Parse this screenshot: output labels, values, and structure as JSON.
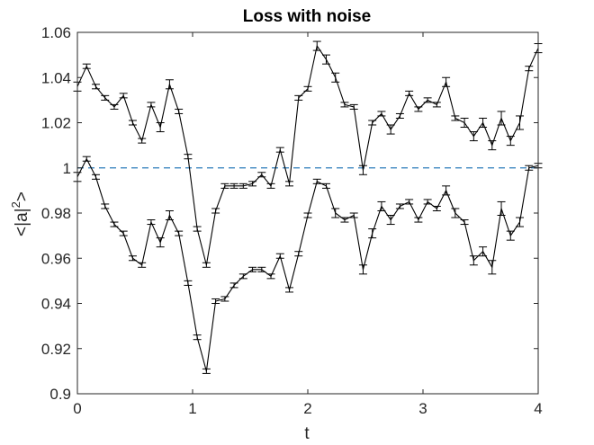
{
  "chart_data": {
    "type": "line",
    "title": "Loss with noise",
    "xlabel": "t",
    "ylabel": "<|a|",
    "ylabel_superscript": "2",
    "ylabel_suffix": ">",
    "xlim": [
      0,
      4
    ],
    "ylim": [
      0.9,
      1.06
    ],
    "xticks": [
      {
        "value": 0,
        "label": "0"
      },
      {
        "value": 1,
        "label": "1"
      },
      {
        "value": 2,
        "label": "2"
      },
      {
        "value": 3,
        "label": "3"
      },
      {
        "value": 4,
        "label": "4"
      }
    ],
    "yticks": [
      {
        "value": 0.9,
        "label": "0.9"
      },
      {
        "value": 0.92,
        "label": "0.92"
      },
      {
        "value": 0.94,
        "label": "0.94"
      },
      {
        "value": 0.96,
        "label": "0.96"
      },
      {
        "value": 0.98,
        "label": "0.98"
      },
      {
        "value": 1.0,
        "label": "1"
      },
      {
        "value": 1.02,
        "label": "1.02"
      },
      {
        "value": 1.04,
        "label": "1.04"
      },
      {
        "value": 1.06,
        "label": "1.06"
      }
    ],
    "grid": false,
    "series_color": "#000000",
    "reference_line": {
      "y": 1.0,
      "style": "dashed",
      "color": "#2b7bba"
    },
    "x": [
      0,
      0.08,
      0.16,
      0.24,
      0.32,
      0.4,
      0.48,
      0.56,
      0.64,
      0.72,
      0.8,
      0.88,
      0.96,
      1.04,
      1.12,
      1.2,
      1.28,
      1.36,
      1.44,
      1.52,
      1.6,
      1.68,
      1.76,
      1.84,
      1.92,
      2.0,
      2.08,
      2.16,
      2.24,
      2.32,
      2.4,
      2.48,
      2.56,
      2.64,
      2.72,
      2.8,
      2.88,
      2.96,
      3.04,
      3.12,
      3.2,
      3.28,
      3.36,
      3.44,
      3.52,
      3.6,
      3.68,
      3.76,
      3.84,
      3.92,
      4.0
    ],
    "series": [
      {
        "values": [
          1.036,
          1.045,
          1.036,
          1.031,
          1.027,
          1.032,
          1.02,
          1.012,
          1.028,
          1.018,
          1.037,
          1.025,
          1.005,
          0.973,
          0.957,
          0.981,
          0.992,
          0.992,
          0.992,
          0.993,
          0.997,
          0.992,
          1.008,
          0.993,
          1.031,
          1.035,
          1.054,
          1.048,
          1.04,
          1.028,
          1.027,
          0.999,
          1.02,
          1.024,
          1.017,
          1.023,
          1.033,
          1.026,
          1.03,
          1.028,
          1.038,
          1.022,
          1.02,
          1.014,
          1.02,
          1.01,
          1.022,
          1.012,
          1.02,
          1.044,
          1.053
        ],
        "errors": [
          0.002,
          0.001,
          0.001,
          0.001,
          0.001,
          0.001,
          0.001,
          0.001,
          0.001,
          0.002,
          0.002,
          0.001,
          0.001,
          0.001,
          0.001,
          0.001,
          0.001,
          0.001,
          0.001,
          0.001,
          0.001,
          0.001,
          0.001,
          0.001,
          0.001,
          0.001,
          0.002,
          0.002,
          0.002,
          0.001,
          0.001,
          0.002,
          0.001,
          0.001,
          0.002,
          0.001,
          0.001,
          0.001,
          0.001,
          0.001,
          0.002,
          0.001,
          0.002,
          0.002,
          0.002,
          0.002,
          0.003,
          0.002,
          0.003,
          0.001,
          0.002
        ]
      },
      {
        "values": [
          0.996,
          1.004,
          0.996,
          0.983,
          0.975,
          0.971,
          0.96,
          0.957,
          0.976,
          0.967,
          0.979,
          0.971,
          0.949,
          0.925,
          0.91,
          0.941,
          0.942,
          0.948,
          0.952,
          0.955,
          0.955,
          0.952,
          0.961,
          0.946,
          0.962,
          0.979,
          0.994,
          0.992,
          0.98,
          0.977,
          0.979,
          0.955,
          0.971,
          0.983,
          0.977,
          0.983,
          0.985,
          0.977,
          0.985,
          0.982,
          0.99,
          0.98,
          0.976,
          0.959,
          0.963,
          0.956,
          0.982,
          0.97,
          0.976,
          1.0,
          1.001
        ],
        "errors": [
          0.002,
          0.001,
          0.001,
          0.001,
          0.001,
          0.001,
          0.001,
          0.001,
          0.001,
          0.002,
          0.002,
          0.001,
          0.001,
          0.001,
          0.001,
          0.001,
          0.001,
          0.001,
          0.001,
          0.001,
          0.001,
          0.001,
          0.001,
          0.001,
          0.001,
          0.001,
          0.001,
          0.001,
          0.002,
          0.001,
          0.001,
          0.002,
          0.002,
          0.002,
          0.002,
          0.001,
          0.001,
          0.001,
          0.001,
          0.001,
          0.002,
          0.002,
          0.001,
          0.002,
          0.002,
          0.003,
          0.003,
          0.002,
          0.002,
          0.001,
          0.001
        ]
      }
    ]
  }
}
